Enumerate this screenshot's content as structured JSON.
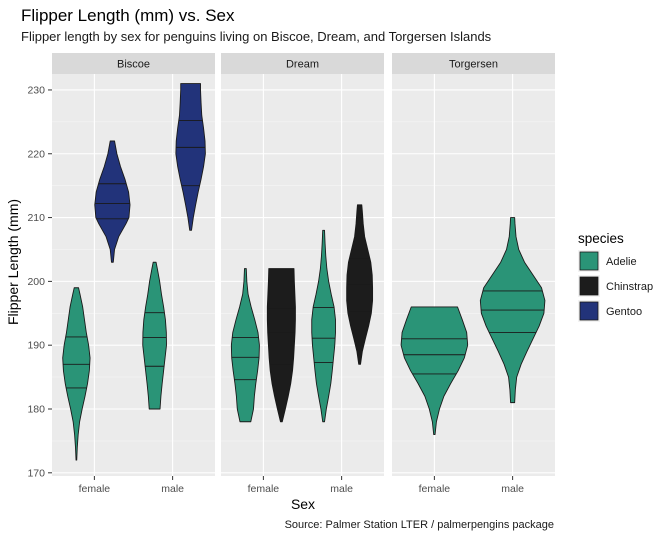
{
  "chart_data": {
    "type": "violin",
    "title": "Flipper Length (mm) vs. Sex",
    "subtitle": "Flipper length by sex for penguins living on Biscoe, Dream, and Torgersen Islands",
    "caption": "Source: Palmer Station LTER / palmerpengins package",
    "xlabel": "Sex",
    "ylabel": "Flipper Length (mm)",
    "ylim": [
      169.5,
      232.5
    ],
    "yticks": [
      170,
      180,
      190,
      200,
      210,
      220,
      230
    ],
    "categories": [
      "female",
      "male"
    ],
    "grid": true,
    "legend": {
      "title": "species",
      "position": "right",
      "items": [
        {
          "name": "Adelie",
          "color": "#2a9477"
        },
        {
          "name": "Chinstrap",
          "color": "#1c1c1c"
        },
        {
          "name": "Gentoo",
          "color": "#22337a"
        }
      ]
    },
    "facets": [
      {
        "name": "Biscoe",
        "violins": [
          {
            "sex": "female",
            "species": "Adelie",
            "slot": -1,
            "min": 172,
            "max": 199,
            "quantiles": [
              183.3,
              187.0,
              191.3
            ],
            "profile": [
              [
                172,
                0.02
              ],
              [
                174,
                0.05
              ],
              [
                176,
                0.1
              ],
              [
                178,
                0.18
              ],
              [
                180,
                0.32
              ],
              [
                182,
                0.48
              ],
              [
                184,
                0.62
              ],
              [
                186,
                0.72
              ],
              [
                188,
                0.76
              ],
              [
                190,
                0.68
              ],
              [
                192,
                0.55
              ],
              [
                194,
                0.45
              ],
              [
                196,
                0.35
              ],
              [
                198,
                0.2
              ],
              [
                199,
                0.12
              ]
            ]
          },
          {
            "sex": "female",
            "species": "Gentoo",
            "slot": 1,
            "min": 203,
            "max": 222,
            "quantiles": [
              209.8,
              212.2,
              215.3
            ],
            "profile": [
              [
                203,
                0.05
              ],
              [
                205,
                0.12
              ],
              [
                207,
                0.35
              ],
              [
                209,
                0.75
              ],
              [
                210,
                0.92
              ],
              [
                212,
                0.98
              ],
              [
                214,
                0.9
              ],
              [
                216,
                0.7
              ],
              [
                218,
                0.45
              ],
              [
                220,
                0.25
              ],
              [
                222,
                0.12
              ]
            ]
          },
          {
            "sex": "male",
            "species": "Adelie",
            "slot": -1,
            "min": 180,
            "max": 203,
            "quantiles": [
              186.7,
              191.2,
              195.1
            ],
            "profile": [
              [
                180,
                0.3
              ],
              [
                182,
                0.35
              ],
              [
                184,
                0.42
              ],
              [
                186,
                0.5
              ],
              [
                188,
                0.58
              ],
              [
                190,
                0.66
              ],
              [
                192,
                0.65
              ],
              [
                194,
                0.6
              ],
              [
                196,
                0.5
              ],
              [
                198,
                0.38
              ],
              [
                200,
                0.28
              ],
              [
                202,
                0.15
              ],
              [
                203,
                0.08
              ]
            ]
          },
          {
            "sex": "male",
            "species": "Gentoo",
            "slot": 1,
            "min": 208,
            "max": 231,
            "quantiles": [
              215.0,
              221.0,
              225.2
            ],
            "profile": [
              [
                208,
                0.05
              ],
              [
                210,
                0.15
              ],
              [
                212,
                0.28
              ],
              [
                214,
                0.42
              ],
              [
                216,
                0.58
              ],
              [
                218,
                0.72
              ],
              [
                220,
                0.82
              ],
              [
                222,
                0.8
              ],
              [
                224,
                0.72
              ],
              [
                226,
                0.62
              ],
              [
                228,
                0.58
              ],
              [
                230,
                0.55
              ],
              [
                231,
                0.55
              ]
            ]
          }
        ]
      },
      {
        "name": "Dream",
        "violins": [
          {
            "sex": "female",
            "species": "Adelie",
            "slot": -1,
            "min": 178,
            "max": 202,
            "quantiles": [
              184.6,
              188.1,
              191.2
            ],
            "profile": [
              [
                178,
                0.3
              ],
              [
                180,
                0.45
              ],
              [
                182,
                0.5
              ],
              [
                184,
                0.58
              ],
              [
                186,
                0.68
              ],
              [
                188,
                0.76
              ],
              [
                190,
                0.78
              ],
              [
                192,
                0.7
              ],
              [
                194,
                0.52
              ],
              [
                196,
                0.32
              ],
              [
                198,
                0.15
              ],
              [
                200,
                0.08
              ],
              [
                202,
                0.05
              ]
            ]
          },
          {
            "sex": "female",
            "species": "Chinstrap",
            "slot": 1,
            "min": 178,
            "max": 202,
            "quantiles": [
              187.0,
              192.0,
              195.8
            ],
            "profile": [
              [
                178,
                0.05
              ],
              [
                180,
                0.22
              ],
              [
                182,
                0.38
              ],
              [
                184,
                0.52
              ],
              [
                186,
                0.62
              ],
              [
                188,
                0.68
              ],
              [
                190,
                0.72
              ],
              [
                192,
                0.76
              ],
              [
                194,
                0.78
              ],
              [
                196,
                0.78
              ],
              [
                198,
                0.75
              ],
              [
                200,
                0.72
              ],
              [
                202,
                0.7
              ]
            ]
          },
          {
            "sex": "male",
            "species": "Adelie",
            "slot": -1,
            "min": 178,
            "max": 208,
            "quantiles": [
              187.3,
              191.1,
              195.9
            ],
            "profile": [
              [
                178,
                0.05
              ],
              [
                180,
                0.15
              ],
              [
                182,
                0.28
              ],
              [
                184,
                0.4
              ],
              [
                186,
                0.48
              ],
              [
                188,
                0.55
              ],
              [
                190,
                0.62
              ],
              [
                192,
                0.66
              ],
              [
                194,
                0.66
              ],
              [
                196,
                0.58
              ],
              [
                198,
                0.42
              ],
              [
                200,
                0.28
              ],
              [
                202,
                0.18
              ],
              [
                204,
                0.12
              ],
              [
                206,
                0.08
              ],
              [
                208,
                0.05
              ]
            ]
          },
          {
            "sex": "male",
            "species": "Chinstrap",
            "slot": 1,
            "min": 187,
            "max": 212,
            "quantiles": [
              195.3,
              199.5,
              203.6
            ],
            "profile": [
              [
                187,
                0.05
              ],
              [
                189,
                0.15
              ],
              [
                191,
                0.32
              ],
              [
                193,
                0.5
              ],
              [
                195,
                0.65
              ],
              [
                197,
                0.72
              ],
              [
                199,
                0.72
              ],
              [
                201,
                0.7
              ],
              [
                203,
                0.62
              ],
              [
                205,
                0.45
              ],
              [
                207,
                0.28
              ],
              [
                209,
                0.2
              ],
              [
                211,
                0.15
              ],
              [
                212,
                0.12
              ]
            ]
          }
        ]
      },
      {
        "name": "Torgersen",
        "violins": [
          {
            "sex": "female",
            "species": "Adelie",
            "slot": 0,
            "min": 176,
            "max": 196,
            "quantiles": [
              185.5,
              188.5,
              191.0
            ],
            "profile": [
              [
                176,
                0.02
              ],
              [
                178,
                0.06
              ],
              [
                180,
                0.15
              ],
              [
                182,
                0.28
              ],
              [
                184,
                0.48
              ],
              [
                186,
                0.7
              ],
              [
                188,
                0.88
              ],
              [
                190,
                0.98
              ],
              [
                192,
                0.95
              ],
              [
                194,
                0.82
              ],
              [
                196,
                0.68
              ]
            ]
          },
          {
            "sex": "male",
            "species": "Adelie",
            "slot": 0,
            "min": 181,
            "max": 210,
            "quantiles": [
              192.0,
              195.5,
              198.5
            ],
            "profile": [
              [
                181,
                0.06
              ],
              [
                183,
                0.08
              ],
              [
                185,
                0.12
              ],
              [
                187,
                0.25
              ],
              [
                189,
                0.42
              ],
              [
                191,
                0.6
              ],
              [
                193,
                0.78
              ],
              [
                195,
                0.92
              ],
              [
                197,
                0.95
              ],
              [
                199,
                0.85
              ],
              [
                201,
                0.6
              ],
              [
                203,
                0.35
              ],
              [
                205,
                0.18
              ],
              [
                207,
                0.1
              ],
              [
                209,
                0.07
              ],
              [
                210,
                0.06
              ]
            ]
          }
        ]
      }
    ]
  }
}
